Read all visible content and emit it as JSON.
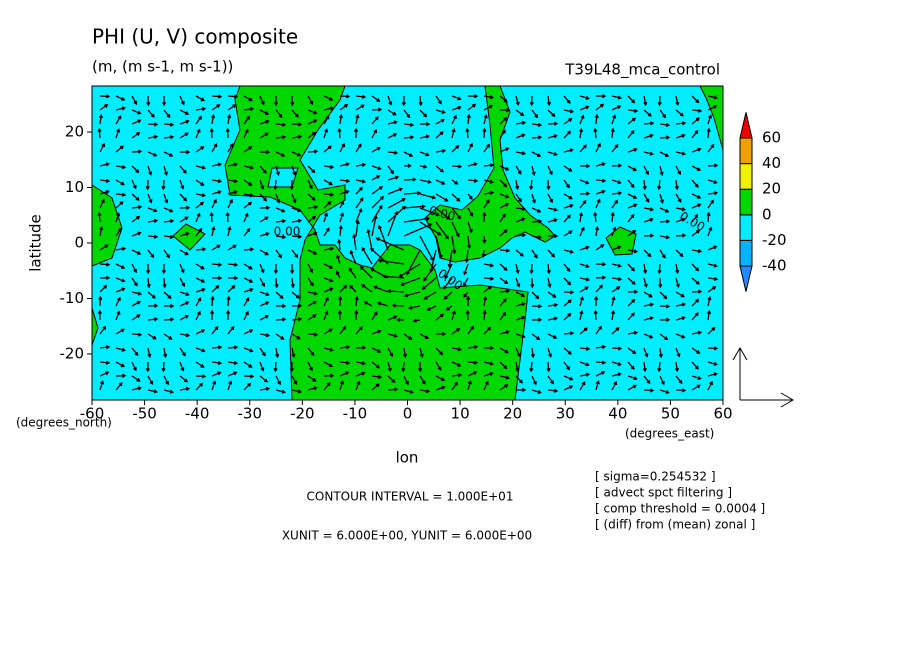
{
  "chart_data": {
    "type": "contour_vector",
    "title": "PHI (U, V) composite",
    "subtitle": "(m, (m s-1, m s-1))",
    "experiment": "T39L48_mca_control",
    "x_label": "lon",
    "y_label": "latitude",
    "x_units": "(degrees_east)",
    "y_units": "(degrees_north)",
    "xlim": [
      -60,
      60
    ],
    "xticks": [
      -60,
      -50,
      -40,
      -30,
      -20,
      -10,
      0,
      10,
      20,
      30,
      40,
      50,
      60
    ],
    "ylim": [
      -28.3,
      28.3
    ],
    "yticks": [
      -20,
      -10,
      0,
      10,
      20
    ],
    "colorbar": {
      "levels": [
        -40,
        -20,
        0,
        20,
        40,
        60
      ],
      "colors": [
        "#1e8cff",
        "#00b4ff",
        "#00ecff",
        "#00d800",
        "#f0f000",
        "#f0a000",
        "#f00000"
      ]
    },
    "contour_labels": [
      {
        "value": 0,
        "label": "0.00"
      },
      {
        "value": 0,
        "label": "0.00"
      },
      {
        "value": 0,
        "label": "0.00"
      },
      {
        "value": 0,
        "label": "0.00"
      }
    ],
    "contour_interval": "CONTOUR INTERVAL = 1.000E+01",
    "unit_note": "XUNIT = 6.000E+00, YUNIT = 6.000E+00",
    "notes": [
      "[ sigma=0.254532 ]",
      "[ advect spct filtering ]",
      "[ comp threshold = 0.0004 ]",
      "[ (diff) from (mean) zonal ]"
    ]
  }
}
